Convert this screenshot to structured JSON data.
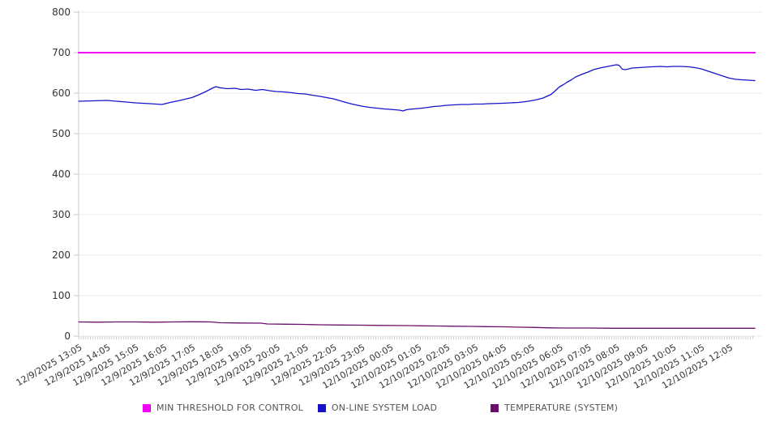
{
  "chart_data": {
    "type": "line",
    "title": "",
    "legend_position": "bottom",
    "grid": "horizontal-only",
    "x_axis": {
      "tick_labels": [
        "12/9/2025 13:05",
        "12/9/2025 14:05",
        "12/9/2025 15:05",
        "12/9/2025 16:05",
        "12/9/2025 17:05",
        "12/9/2025 18:05",
        "12/9/2025 19:05",
        "12/9/2025 20:05",
        "12/9/2025 21:05",
        "12/9/2025 22:05",
        "12/9/2025 23:05",
        "12/10/2025 00:05",
        "12/10/2025 01:05",
        "12/10/2025 02:05",
        "12/10/2025 03:05",
        "12/10/2025 04:05",
        "12/10/2025 05:05",
        "12/10/2025 06:05",
        "12/10/2025 07:05",
        "12/10/2025 08:05",
        "12/10/2025 09:05",
        "12/10/2025 10:05",
        "12/10/2025 11:05",
        "12/10/2025 12:05"
      ],
      "tick_minutes": [
        0,
        60,
        120,
        180,
        240,
        300,
        360,
        420,
        480,
        540,
        600,
        660,
        720,
        780,
        840,
        900,
        960,
        1020,
        1080,
        1140,
        1200,
        1260,
        1320,
        1380
      ],
      "total_minutes": 1434,
      "minor_tick_step_minutes": 5
    },
    "y_axis": {
      "min": 0,
      "max": 800,
      "ticks": [
        0,
        100,
        200,
        300,
        400,
        500,
        600,
        700,
        800
      ]
    },
    "series": [
      {
        "name": "MIN THRESHOLD FOR CONTROL",
        "color": "#F000F0",
        "stroke_width": 2,
        "points": [
          [
            0,
            700
          ],
          [
            1434,
            700
          ]
        ]
      },
      {
        "name": "ON-LINE SYSTEM LOAD",
        "color": "#1414CC",
        "stroke_width": 1.3,
        "points": [
          [
            0,
            580
          ],
          [
            30,
            581
          ],
          [
            60,
            582
          ],
          [
            91,
            579
          ],
          [
            120,
            576
          ],
          [
            151,
            574
          ],
          [
            177,
            572
          ],
          [
            194,
            577
          ],
          [
            211,
            581
          ],
          [
            240,
            589
          ],
          [
            255,
            596
          ],
          [
            270,
            604
          ],
          [
            283,
            612
          ],
          [
            291,
            616
          ],
          [
            301,
            613
          ],
          [
            315,
            611
          ],
          [
            332,
            612
          ],
          [
            345,
            609
          ],
          [
            359,
            610
          ],
          [
            375,
            607
          ],
          [
            390,
            609
          ],
          [
            405,
            606
          ],
          [
            419,
            604
          ],
          [
            435,
            603
          ],
          [
            452,
            601
          ],
          [
            465,
            599
          ],
          [
            480,
            598
          ],
          [
            495,
            595
          ],
          [
            512,
            592
          ],
          [
            526,
            589
          ],
          [
            540,
            586
          ],
          [
            552,
            582
          ],
          [
            564,
            578
          ],
          [
            580,
            573
          ],
          [
            600,
            568
          ],
          [
            616,
            565
          ],
          [
            632,
            563
          ],
          [
            648,
            561
          ],
          [
            660,
            560
          ],
          [
            680,
            558
          ],
          [
            688,
            556
          ],
          [
            695,
            559
          ],
          [
            701,
            560
          ],
          [
            710,
            561
          ],
          [
            720,
            562
          ],
          [
            736,
            564
          ],
          [
            753,
            567
          ],
          [
            766,
            568
          ],
          [
            780,
            570
          ],
          [
            796,
            571
          ],
          [
            813,
            572
          ],
          [
            826,
            572
          ],
          [
            840,
            573
          ],
          [
            856,
            573
          ],
          [
            870,
            574
          ],
          [
            899,
            575
          ],
          [
            916,
            576
          ],
          [
            933,
            577
          ],
          [
            947,
            579
          ],
          [
            959,
            581
          ],
          [
            972,
            584
          ],
          [
            985,
            588
          ],
          [
            1002,
            597
          ],
          [
            1010,
            605
          ],
          [
            1019,
            615
          ],
          [
            1028,
            621
          ],
          [
            1036,
            627
          ],
          [
            1045,
            633
          ],
          [
            1054,
            640
          ],
          [
            1066,
            646
          ],
          [
            1080,
            652
          ],
          [
            1092,
            658
          ],
          [
            1105,
            662
          ],
          [
            1118,
            665
          ],
          [
            1131,
            668
          ],
          [
            1140,
            670
          ],
          [
            1146,
            669
          ],
          [
            1153,
            659
          ],
          [
            1160,
            658
          ],
          [
            1174,
            662
          ],
          [
            1187,
            663
          ],
          [
            1200,
            664
          ],
          [
            1215,
            665
          ],
          [
            1234,
            666
          ],
          [
            1247,
            665
          ],
          [
            1260,
            666
          ],
          [
            1277,
            666
          ],
          [
            1294,
            665
          ],
          [
            1307,
            663
          ],
          [
            1320,
            660
          ],
          [
            1333,
            655
          ],
          [
            1346,
            650
          ],
          [
            1359,
            645
          ],
          [
            1372,
            640
          ],
          [
            1380,
            637
          ],
          [
            1394,
            634
          ],
          [
            1406,
            633
          ],
          [
            1420,
            632
          ],
          [
            1434,
            631
          ]
        ]
      },
      {
        "name": "TEMPERATURE (SYSTEM)",
        "color": "#6B0F6B",
        "stroke_width": 1.3,
        "points": [
          [
            0,
            35
          ],
          [
            40,
            34.5
          ],
          [
            80,
            35
          ],
          [
            120,
            35
          ],
          [
            160,
            34.5
          ],
          [
            200,
            35
          ],
          [
            240,
            35.5
          ],
          [
            280,
            35
          ],
          [
            300,
            33
          ],
          [
            340,
            32.5
          ],
          [
            387,
            32
          ],
          [
            400,
            30
          ],
          [
            440,
            29.5
          ],
          [
            473,
            29
          ],
          [
            510,
            28
          ],
          [
            555,
            27.5
          ],
          [
            600,
            27
          ],
          [
            641,
            26.5
          ],
          [
            690,
            26
          ],
          [
            727,
            25.5
          ],
          [
            760,
            25
          ],
          [
            796,
            24.5
          ],
          [
            830,
            24
          ],
          [
            864,
            23.5
          ],
          [
            900,
            23
          ],
          [
            935,
            22
          ],
          [
            968,
            21.5
          ],
          [
            1000,
            20.5
          ],
          [
            1028,
            20
          ],
          [
            1080,
            20
          ],
          [
            1130,
            19.5
          ],
          [
            1200,
            19.5
          ],
          [
            1280,
            19.5
          ],
          [
            1360,
            19.5
          ],
          [
            1434,
            19.5
          ]
        ]
      }
    ],
    "colors": {
      "background": "#ffffff",
      "grid": "#ececec",
      "axis": "#c9c9c9",
      "minor_tick": "#c4c4c4",
      "axis_label_text": "#333333",
      "legend_text": "#545454"
    }
  }
}
